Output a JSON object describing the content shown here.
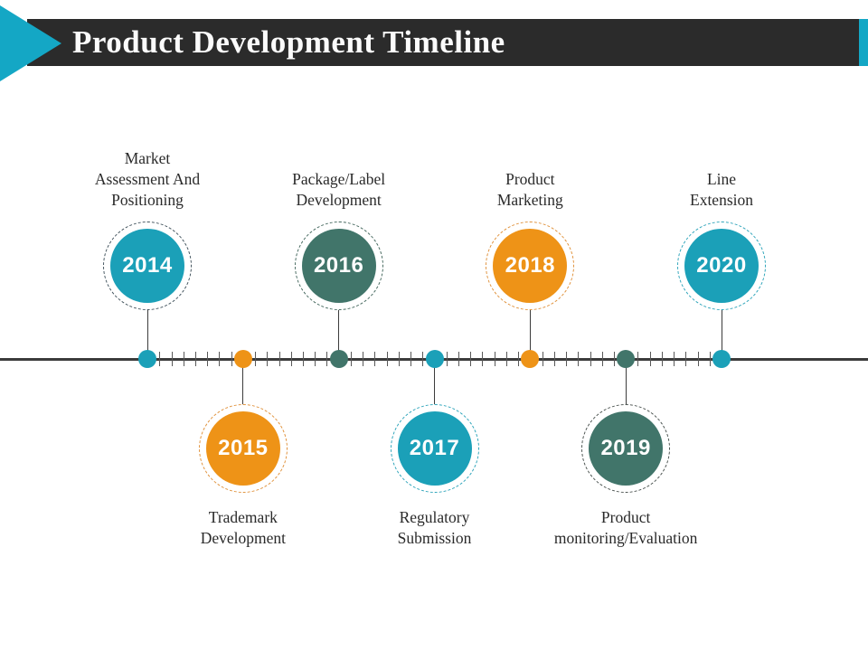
{
  "slide": {
    "title": "Product Development Timeline",
    "colors": {
      "header_bar": "#2b2b2b",
      "accent_teal": "#14a7c5",
      "background": "#ffffff",
      "timeline_line": "#3b3b3b",
      "tick": "#585858",
      "label_text": "#2a2a2a",
      "year_text": "#ffffff",
      "circle_teal": "#1ba0b8",
      "circle_orange": "#ee9317",
      "circle_green": "#41756a"
    }
  },
  "chart_data": {
    "type": "timeline",
    "title": "Product Development Timeline",
    "axis": {
      "start_year": 2014,
      "end_year": 2020,
      "ticks_between_years": 7
    },
    "milestones": [
      {
        "year": "2014",
        "label": "Market Assessment And Positioning",
        "lines": [
          "Market",
          "Assessment And",
          "Positioning"
        ],
        "side": "top",
        "color": "#1ba0b8",
        "ring_color": "#41525c"
      },
      {
        "year": "2015",
        "label": "Trademark Development",
        "lines": [
          "Trademark",
          "Development"
        ],
        "side": "bottom",
        "color": "#ee9317",
        "ring_color": "#e0913a"
      },
      {
        "year": "2016",
        "label": "Package/Label Development",
        "lines": [
          "Package/Label",
          "Development"
        ],
        "side": "top",
        "color": "#41756a",
        "ring_color": "#45685e"
      },
      {
        "year": "2017",
        "label": "Regulatory Submission",
        "lines": [
          "Regulatory",
          "Submission"
        ],
        "side": "bottom",
        "color": "#1ba0b8",
        "ring_color": "#2da4ba"
      },
      {
        "year": "2018",
        "label": "Product Marketing",
        "lines": [
          "Product",
          "Marketing"
        ],
        "side": "top",
        "color": "#ee9317",
        "ring_color": "#e0913a"
      },
      {
        "year": "2019",
        "label": "Product monitoring/Evaluation",
        "lines": [
          "Product",
          "monitoring/Evaluation"
        ],
        "side": "bottom",
        "color": "#41756a",
        "ring_color": "#4a524f"
      },
      {
        "year": "2020",
        "label": "Line Extension",
        "lines": [
          "Line",
          "Extension"
        ],
        "side": "top",
        "color": "#1ba0b8",
        "ring_color": "#2da4ba"
      }
    ]
  }
}
